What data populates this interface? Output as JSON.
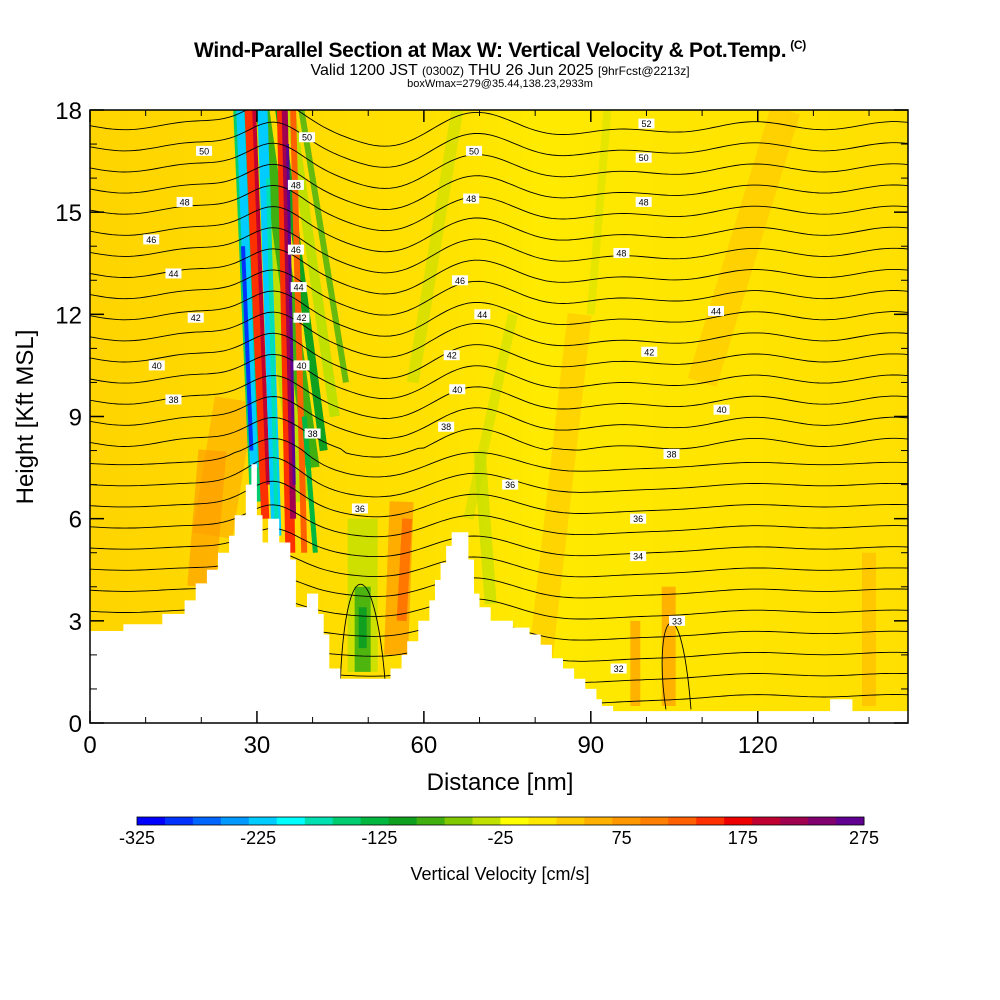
{
  "header": {
    "title": "Wind-Parallel Section at Max W: Vertical Velocity & Pot.Temp.",
    "copyright": "(C)",
    "valid_prefix": "Valid 1200 JST",
    "valid_utc": "(0300Z)",
    "valid_date": "THU 26 Jun 2025",
    "forecast": "[9hrFcst@2213z]",
    "box_info": "boxWmax=279@35.44,138.23,2933m"
  },
  "chart_data": {
    "type": "heatmap",
    "title": "Wind-Parallel Section at Max W: Vertical Velocity & Pot.Temp.",
    "xlabel": "Distance [nm]",
    "ylabel": "Height [Kft MSL]",
    "xlim": [
      0,
      147
    ],
    "ylim": [
      0,
      18
    ],
    "x_ticks": [
      0,
      30,
      60,
      90,
      120
    ],
    "x_tick_labels": [
      "0",
      "30",
      "60",
      "90",
      "120"
    ],
    "y_ticks": [
      0,
      3,
      6,
      9,
      12,
      15,
      18
    ],
    "y_tick_labels": [
      "0",
      "3",
      "6",
      "9",
      "12",
      "15",
      "18"
    ],
    "colorbar": {
      "label": "Vertical Velocity [cm/s]",
      "min": -325,
      "max": 275,
      "step": 25,
      "tick_values": [
        -325,
        -225,
        -125,
        -25,
        75,
        175,
        275
      ],
      "tick_labels": [
        "-325",
        "-225",
        "-125",
        "-25",
        "75",
        "175",
        "275"
      ],
      "colors": [
        "#0000ff",
        "#0033ff",
        "#0066ff",
        "#0099ff",
        "#00ccff",
        "#00ffff",
        "#00e0b0",
        "#00cc70",
        "#00b840",
        "#10a020",
        "#40b010",
        "#80c800",
        "#c0e000",
        "#ffff00",
        "#ffe800",
        "#ffcc00",
        "#ffb000",
        "#ff9800",
        "#ff8000",
        "#ff6000",
        "#ff3000",
        "#ee0000",
        "#c00030",
        "#a00050",
        "#800070",
        "#600090"
      ]
    },
    "contour_field": "potential temperature",
    "contour_labels": [
      {
        "text": "50",
        "x": 20.5,
        "y": 16.8
      },
      {
        "text": "48",
        "x": 17,
        "y": 15.3
      },
      {
        "text": "46",
        "x": 11,
        "y": 14.2
      },
      {
        "text": "44",
        "x": 15,
        "y": 13.2
      },
      {
        "text": "42",
        "x": 19,
        "y": 11.9
      },
      {
        "text": "40",
        "x": 12,
        "y": 10.5
      },
      {
        "text": "38",
        "x": 15,
        "y": 9.5
      },
      {
        "text": "50",
        "x": 39,
        "y": 17.2
      },
      {
        "text": "48",
        "x": 37,
        "y": 15.8
      },
      {
        "text": "46",
        "x": 37,
        "y": 13.9
      },
      {
        "text": "44",
        "x": 37.5,
        "y": 12.8
      },
      {
        "text": "42",
        "x": 38,
        "y": 11.9
      },
      {
        "text": "40",
        "x": 38,
        "y": 10.5
      },
      {
        "text": "38",
        "x": 40,
        "y": 8.5
      },
      {
        "text": "36",
        "x": 48.5,
        "y": 6.3
      },
      {
        "text": "52",
        "x": 100,
        "y": 17.6
      },
      {
        "text": "50",
        "x": 69,
        "y": 16.8
      },
      {
        "text": "50",
        "x": 99.5,
        "y": 16.6
      },
      {
        "text": "48",
        "x": 68.5,
        "y": 15.4
      },
      {
        "text": "48",
        "x": 99.5,
        "y": 15.3
      },
      {
        "text": "48",
        "x": 95.5,
        "y": 13.8
      },
      {
        "text": "46",
        "x": 66.5,
        "y": 13.0
      },
      {
        "text": "44",
        "x": 70.5,
        "y": 12.0
      },
      {
        "text": "44",
        "x": 112.5,
        "y": 12.1
      },
      {
        "text": "42",
        "x": 65,
        "y": 10.8
      },
      {
        "text": "42",
        "x": 100.5,
        "y": 10.9
      },
      {
        "text": "40",
        "x": 66,
        "y": 9.8
      },
      {
        "text": "40",
        "x": 113.5,
        "y": 9.2
      },
      {
        "text": "38",
        "x": 64,
        "y": 8.7
      },
      {
        "text": "38",
        "x": 104.5,
        "y": 7.9
      },
      {
        "text": "36",
        "x": 75.5,
        "y": 7.0
      },
      {
        "text": "36",
        "x": 98.5,
        "y": 6.0
      },
      {
        "text": "34",
        "x": 98.5,
        "y": 4.9
      },
      {
        "text": "32",
        "x": 95,
        "y": 1.6
      },
      {
        "text": "33",
        "x": 105.5,
        "y": 3.0
      }
    ],
    "terrain": [
      [
        0,
        2.7
      ],
      [
        6,
        2.7
      ],
      [
        6,
        2.9
      ],
      [
        13,
        2.9
      ],
      [
        13,
        3.2
      ],
      [
        17,
        3.2
      ],
      [
        17,
        3.6
      ],
      [
        19,
        3.6
      ],
      [
        19,
        4.1
      ],
      [
        21,
        4.1
      ],
      [
        21,
        4.5
      ],
      [
        23,
        4.5
      ],
      [
        23,
        5.0
      ],
      [
        25,
        5.0
      ],
      [
        25,
        5.5
      ],
      [
        26,
        5.5
      ],
      [
        26,
        6.1
      ],
      [
        28,
        6.1
      ],
      [
        28,
        7.0
      ],
      [
        29,
        7.0
      ],
      [
        29,
        7.6
      ],
      [
        30,
        7.6
      ],
      [
        30,
        6.1
      ],
      [
        31,
        6.1
      ],
      [
        31,
        5.3
      ],
      [
        32,
        5.3
      ],
      [
        32,
        6.0
      ],
      [
        34,
        6.0
      ],
      [
        34,
        5.3
      ],
      [
        36,
        5.3
      ],
      [
        36,
        4.8
      ],
      [
        37,
        4.8
      ],
      [
        37,
        3.4
      ],
      [
        39,
        3.4
      ],
      [
        39,
        3.8
      ],
      [
        41,
        3.8
      ],
      [
        41,
        3.2
      ],
      [
        42,
        3.2
      ],
      [
        42,
        2.6
      ],
      [
        43,
        2.6
      ],
      [
        43,
        1.6
      ],
      [
        45,
        1.6
      ],
      [
        45,
        1.3
      ],
      [
        54,
        1.3
      ],
      [
        54,
        1.6
      ],
      [
        56,
        1.6
      ],
      [
        56,
        2.0
      ],
      [
        57,
        2.0
      ],
      [
        57,
        2.4
      ],
      [
        59,
        2.4
      ],
      [
        59,
        3.0
      ],
      [
        61,
        3.0
      ],
      [
        61,
        3.6
      ],
      [
        62,
        3.6
      ],
      [
        62,
        4.2
      ],
      [
        63,
        4.2
      ],
      [
        63,
        4.7
      ],
      [
        64,
        4.7
      ],
      [
        64,
        5.2
      ],
      [
        65,
        5.2
      ],
      [
        65,
        5.6
      ],
      [
        68,
        5.6
      ],
      [
        68,
        4.8
      ],
      [
        69,
        4.8
      ],
      [
        69,
        3.8
      ],
      [
        70,
        3.8
      ],
      [
        70,
        3.4
      ],
      [
        72,
        3.4
      ],
      [
        72,
        3.0
      ],
      [
        76,
        3.0
      ],
      [
        76,
        2.8
      ],
      [
        79,
        2.8
      ],
      [
        79,
        2.6
      ],
      [
        81,
        2.6
      ],
      [
        81,
        2.3
      ],
      [
        83,
        2.3
      ],
      [
        83,
        1.9
      ],
      [
        85,
        1.9
      ],
      [
        85,
        1.6
      ],
      [
        87,
        1.6
      ],
      [
        87,
        1.3
      ],
      [
        89,
        1.3
      ],
      [
        89,
        1.0
      ],
      [
        91,
        1.0
      ],
      [
        91,
        0.7
      ],
      [
        92,
        0.7
      ],
      [
        92,
        0.5
      ],
      [
        94,
        0.5
      ],
      [
        94,
        0.35
      ],
      [
        133,
        0.35
      ],
      [
        133,
        0.7
      ],
      [
        137,
        0.7
      ],
      [
        137,
        0.35
      ],
      [
        147,
        0.35
      ],
      [
        147,
        0
      ],
      [
        0,
        0
      ]
    ]
  }
}
